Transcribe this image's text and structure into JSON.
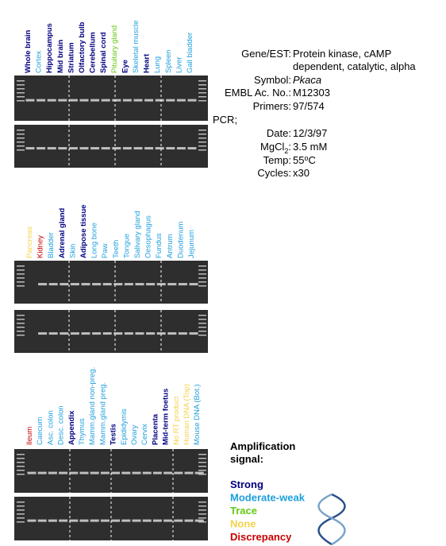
{
  "panels": [
    {
      "lanes": [
        {
          "text": "Whole brain",
          "color": "#000080"
        },
        {
          "text": "Cortex",
          "color": "#1e9fdc"
        },
        {
          "text": "Hippocampus",
          "color": "#000080"
        },
        {
          "text": "Mid brain",
          "color": "#000080"
        },
        {
          "text": "Striatum",
          "color": "#000080"
        },
        {
          "text": "Olfactory bulb",
          "color": "#000080"
        },
        {
          "text": "Cerebellum",
          "color": "#000080"
        },
        {
          "text": "Spinal cord",
          "color": "#000080"
        },
        {
          "text": "Pituitary gland",
          "color": "#66c814"
        },
        {
          "text": "Eye",
          "color": "#000080"
        },
        {
          "text": "Skeletal muscle",
          "color": "#1e9fdc"
        },
        {
          "text": "Heart",
          "color": "#000080"
        },
        {
          "text": "Lung",
          "color": "#1e9fdc"
        },
        {
          "text": "Spleen",
          "color": "#1e9fdc"
        },
        {
          "text": "Liver",
          "color": "#1e9fdc"
        },
        {
          "text": "Gall bladder",
          "color": "#1e9fdc"
        }
      ]
    },
    {
      "lanes": [
        {
          "text": "Pancreas",
          "color": "#f5d24a"
        },
        {
          "text": "Kidney",
          "color": "#c80000"
        },
        {
          "text": "Bladder",
          "color": "#1e9fdc"
        },
        {
          "text": "Adrenal gland",
          "color": "#000080"
        },
        {
          "text": "Skin",
          "color": "#1e9fdc"
        },
        {
          "text": "Adipose tissue",
          "color": "#000080"
        },
        {
          "text": "Long bone",
          "color": "#1e9fdc"
        },
        {
          "text": "Paw",
          "color": "#1e9fdc"
        },
        {
          "text": "Teeth",
          "color": "#1e9fdc"
        },
        {
          "text": "Tongue",
          "color": "#1e9fdc"
        },
        {
          "text": "Salivary gland",
          "color": "#1e9fdc"
        },
        {
          "text": "Oesophagus",
          "color": "#1e9fdc"
        },
        {
          "text": "Fundus",
          "color": "#1e9fdc"
        },
        {
          "text": "Antrum",
          "color": "#1e9fdc"
        },
        {
          "text": "Duodenum",
          "color": "#1e9fdc"
        },
        {
          "text": "Jejunum",
          "color": "#1e9fdc"
        }
      ]
    },
    {
      "lanes": [
        {
          "text": "Ileum",
          "color": "#c80000"
        },
        {
          "text": "Caecum",
          "color": "#1e9fdc"
        },
        {
          "text": "Asc. colon",
          "color": "#1e9fdc"
        },
        {
          "text": "Desc. colon",
          "color": "#1e9fdc"
        },
        {
          "text": "Appendix",
          "color": "#000080"
        },
        {
          "text": "Thymus",
          "color": "#1e9fdc"
        },
        {
          "text": "Mamm.gland non-preg.",
          "color": "#1e9fdc"
        },
        {
          "text": "Mamm.gland preg.",
          "color": "#1e9fdc"
        },
        {
          "text": "Testis",
          "color": "#000080"
        },
        {
          "text": "Epididymis",
          "color": "#1e9fdc"
        },
        {
          "text": "Ovary",
          "color": "#1e9fdc"
        },
        {
          "text": "Cervix",
          "color": "#1e9fdc"
        },
        {
          "text": "Placenta",
          "color": "#000080"
        },
        {
          "text": "Mid-term foetus",
          "color": "#000080"
        },
        {
          "text": "No RT product",
          "color": "#f5d24a"
        },
        {
          "text": "Human DNA (Top)",
          "color": "#f5d24a"
        },
        {
          "text": "Mouse DNA (Bot.)",
          "color": "#1e9fdc"
        }
      ]
    }
  ],
  "info": {
    "gene_label": "Gene/EST:",
    "gene_line1": "Protein kinase, cAMP",
    "gene_line2": "dependent, catalytic, alpha",
    "symbol_label": "Symbol:",
    "symbol": "Pkaca",
    "embl_label": "EMBL Ac. No.:",
    "embl": "M12303",
    "primers_label": "Primers:",
    "primers": "97/574",
    "pcr_label": "PCR;",
    "date_label": "Date:",
    "date": "12/3/97",
    "mgcl_label": "MgCl",
    "mgcl_sub": "2",
    "mgcl_colon": ":",
    "mgcl": "3.5 mM",
    "temp_label": "Temp:",
    "temp_num": "55",
    "temp_sup": "o",
    "temp_unit": "C",
    "cycles_label": "Cycles:",
    "cycles": "x30"
  },
  "legend": {
    "title_line1": "Amplification",
    "title_line2": "signal:",
    "items": [
      {
        "text": "Strong",
        "color": "#000080"
      },
      {
        "text": "Moderate-weak",
        "color": "#1e9fdc"
      },
      {
        "text": "Trace",
        "color": "#66c814"
      },
      {
        "text": "None",
        "color": "#f5d24a"
      },
      {
        "text": "Discrepancy",
        "color": "#c80000"
      }
    ]
  }
}
